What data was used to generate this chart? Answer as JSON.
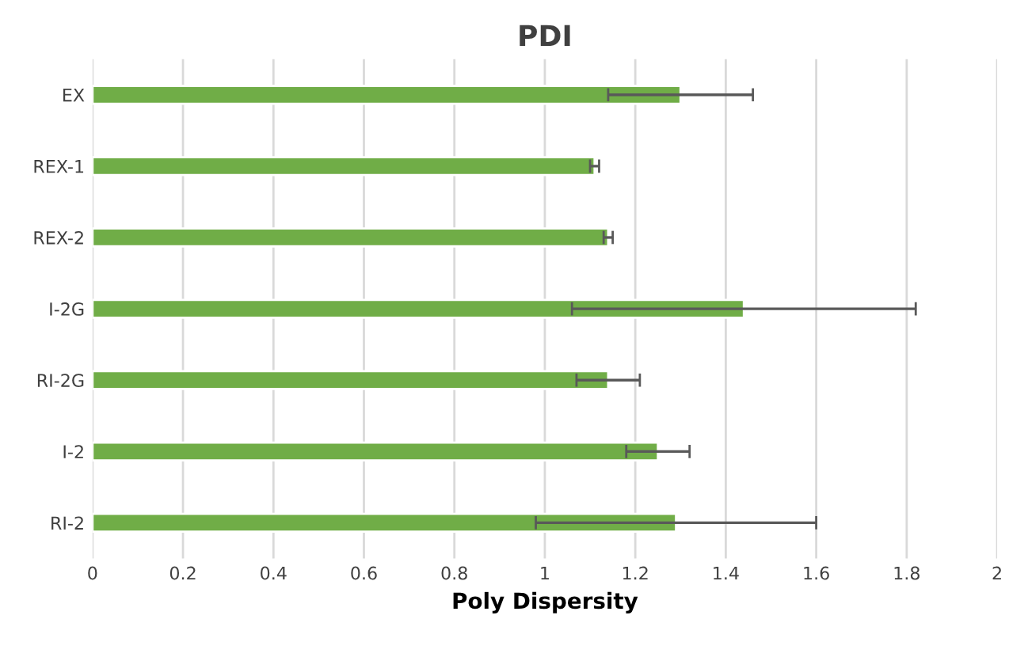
{
  "chart_data": {
    "type": "bar",
    "orientation": "horizontal",
    "title": "PDI",
    "xlabel": "Poly Dispersity",
    "categories": [
      "EX",
      "REX-1",
      "REX-2",
      "I-2G",
      "RI-2G",
      "I-2",
      "RI-2"
    ],
    "values": [
      1.3,
      1.11,
      1.14,
      1.44,
      1.14,
      1.25,
      1.29
    ],
    "errors": [
      0.16,
      0.01,
      0.01,
      0.38,
      0.07,
      0.07,
      0.31
    ],
    "color": "#70ad47",
    "xlim": [
      0,
      2
    ],
    "xticks": [
      0,
      0.2,
      0.4,
      0.6,
      0.8,
      1,
      1.2,
      1.4,
      1.6,
      1.8,
      2
    ],
    "grid": "x"
  }
}
